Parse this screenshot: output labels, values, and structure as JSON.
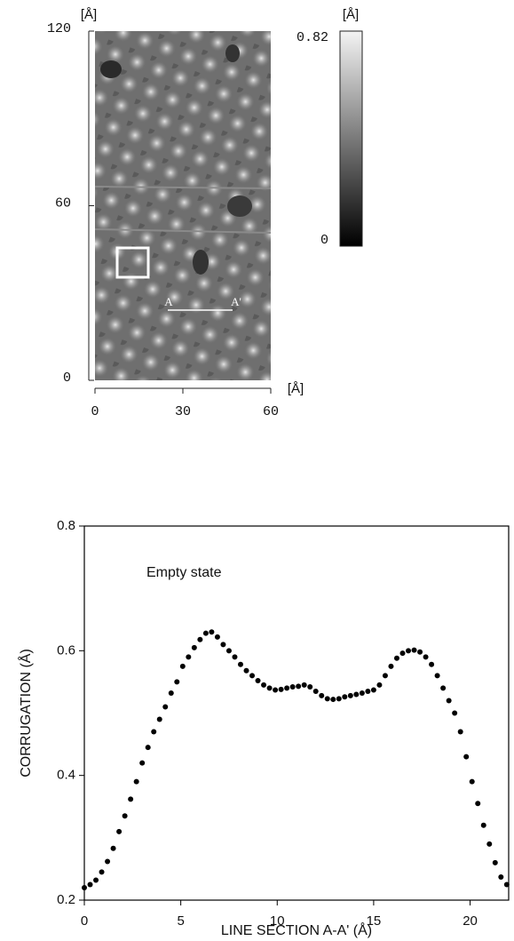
{
  "chart_data": [
    {
      "type": "image",
      "xlim": [
        0,
        60
      ],
      "ylim": [
        0,
        120
      ],
      "xticks": [
        0,
        30,
        60
      ],
      "yticks": [
        0,
        60,
        120
      ],
      "x_unit": "[Å]",
      "y_unit": "[Å]",
      "colorbar": {
        "lim": [
          0,
          0.82
        ],
        "ticks": [
          0,
          0.82
        ],
        "label": "[Å]"
      },
      "annotations": [
        "A",
        "A'"
      ]
    },
    {
      "type": "scatter",
      "annotation": "Empty state",
      "xlabel": "LINE SECTION A-A' (Å)",
      "ylabel": "CORRUGATION (Å)",
      "xlim": [
        0,
        22
      ],
      "ylim": [
        0.2,
        0.8
      ],
      "xticks": [
        0,
        5,
        10,
        15,
        20
      ],
      "yticks": [
        0.2,
        0.4,
        0.6,
        0.8
      ],
      "color": "#000000",
      "x": [
        0,
        0.3,
        0.6,
        0.9,
        1.2,
        1.5,
        1.8,
        2.1,
        2.4,
        2.7,
        3.0,
        3.3,
        3.6,
        3.9,
        4.2,
        4.5,
        4.8,
        5.1,
        5.4,
        5.7,
        6.0,
        6.3,
        6.6,
        6.9,
        7.2,
        7.5,
        7.8,
        8.1,
        8.4,
        8.7,
        9.0,
        9.3,
        9.6,
        9.9,
        10.2,
        10.5,
        10.8,
        11.1,
        11.4,
        11.7,
        12.0,
        12.3,
        12.6,
        12.9,
        13.2,
        13.5,
        13.8,
        14.1,
        14.4,
        14.7,
        15.0,
        15.3,
        15.6,
        15.9,
        16.2,
        16.5,
        16.8,
        17.1,
        17.4,
        17.7,
        18.0,
        18.3,
        18.6,
        18.9,
        19.2,
        19.5,
        19.8,
        20.1,
        20.4,
        20.7,
        21.0,
        21.3,
        21.6,
        21.9
      ],
      "values": [
        0.22,
        0.225,
        0.232,
        0.245,
        0.262,
        0.283,
        0.31,
        0.335,
        0.362,
        0.39,
        0.42,
        0.445,
        0.47,
        0.49,
        0.51,
        0.532,
        0.55,
        0.575,
        0.59,
        0.605,
        0.618,
        0.628,
        0.63,
        0.622,
        0.61,
        0.6,
        0.59,
        0.578,
        0.568,
        0.56,
        0.552,
        0.545,
        0.54,
        0.537,
        0.538,
        0.54,
        0.542,
        0.543,
        0.545,
        0.542,
        0.535,
        0.528,
        0.523,
        0.522,
        0.523,
        0.526,
        0.528,
        0.53,
        0.532,
        0.535,
        0.537,
        0.545,
        0.56,
        0.575,
        0.588,
        0.596,
        0.6,
        0.601,
        0.598,
        0.59,
        0.578,
        0.56,
        0.54,
        0.52,
        0.5,
        0.47,
        0.43,
        0.39,
        0.355,
        0.32,
        0.29,
        0.26,
        0.237,
        0.225
      ]
    }
  ]
}
